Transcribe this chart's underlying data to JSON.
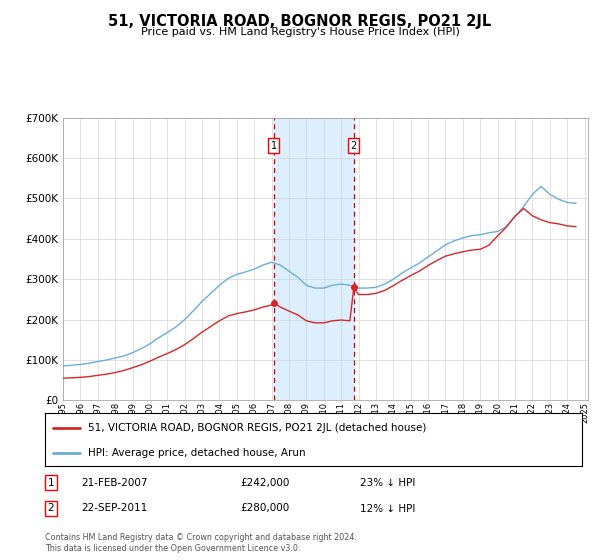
{
  "title": "51, VICTORIA ROAD, BOGNOR REGIS, PO21 2JL",
  "subtitle": "Price paid vs. HM Land Registry's House Price Index (HPI)",
  "hpi_color": "#6baed6",
  "price_color": "#d62728",
  "shading_color": "#ddeeff",
  "ylim": [
    0,
    700000
  ],
  "yticks": [
    0,
    100000,
    200000,
    300000,
    400000,
    500000,
    600000,
    700000
  ],
  "ytick_labels": [
    "£0",
    "£100K",
    "£200K",
    "£300K",
    "£400K",
    "£500K",
    "£600K",
    "£700K"
  ],
  "sale1_year": 2007.13,
  "sale2_year": 2011.73,
  "sale1_price": 242000,
  "sale2_price": 280000,
  "legend_entry1": "51, VICTORIA ROAD, BOGNOR REGIS, PO21 2JL (detached house)",
  "legend_entry2": "HPI: Average price, detached house, Arun",
  "table_row1_label": "1",
  "table_row1_date": "21-FEB-2007",
  "table_row1_price": "£242,000",
  "table_row1_hpi": "23% ↓ HPI",
  "table_row2_label": "2",
  "table_row2_date": "22-SEP-2011",
  "table_row2_price": "£280,000",
  "table_row2_hpi": "12% ↓ HPI",
  "footnote": "Contains HM Land Registry data © Crown copyright and database right 2024.\nThis data is licensed under the Open Government Licence v3.0.",
  "hpi_x": [
    1995,
    1995.5,
    1996,
    1996.5,
    1997,
    1997.5,
    1998,
    1998.5,
    1999,
    1999.5,
    2000,
    2000.5,
    2001,
    2001.5,
    2002,
    2002.5,
    2003,
    2003.5,
    2004,
    2004.5,
    2005,
    2005.5,
    2006,
    2006.5,
    2007,
    2007.5,
    2008,
    2008.5,
    2009,
    2009.5,
    2010,
    2010.5,
    2011,
    2011.5,
    2012,
    2012.5,
    2013,
    2013.5,
    2014,
    2014.5,
    2015,
    2015.5,
    2016,
    2016.5,
    2017,
    2017.5,
    2018,
    2018.5,
    2019,
    2019.5,
    2020,
    2020.5,
    2021,
    2021.5,
    2022,
    2022.5,
    2023,
    2023.5,
    2024,
    2024.5
  ],
  "hpi_y": [
    85000,
    87000,
    89000,
    92000,
    96000,
    100000,
    105000,
    110000,
    118000,
    128000,
    140000,
    155000,
    168000,
    182000,
    200000,
    222000,
    245000,
    265000,
    285000,
    302000,
    312000,
    318000,
    325000,
    335000,
    342000,
    335000,
    320000,
    305000,
    285000,
    278000,
    278000,
    285000,
    288000,
    285000,
    278000,
    278000,
    280000,
    288000,
    300000,
    315000,
    328000,
    340000,
    355000,
    370000,
    385000,
    395000,
    402000,
    408000,
    410000,
    415000,
    418000,
    430000,
    455000,
    480000,
    510000,
    530000,
    510000,
    498000,
    490000,
    488000
  ],
  "price_x": [
    1995,
    1995.5,
    1996,
    1996.5,
    1997,
    1997.5,
    1998,
    1998.5,
    1999,
    1999.5,
    2000,
    2000.5,
    2001,
    2001.5,
    2002,
    2002.5,
    2003,
    2003.5,
    2004,
    2004.5,
    2005,
    2005.5,
    2006,
    2006.5,
    2007,
    2007.13,
    2007.5,
    2008,
    2008.5,
    2009,
    2009.5,
    2010,
    2010.5,
    2011,
    2011.5,
    2011.73,
    2012,
    2012.5,
    2013,
    2013.5,
    2014,
    2014.5,
    2015,
    2015.5,
    2016,
    2016.5,
    2017,
    2017.5,
    2018,
    2018.5,
    2019,
    2019.5,
    2020,
    2020.5,
    2021,
    2021.5,
    2022,
    2022.5,
    2023,
    2023.5,
    2024,
    2024.5
  ],
  "price_y": [
    55000,
    56000,
    57000,
    59000,
    62000,
    65000,
    69000,
    74000,
    81000,
    88000,
    97000,
    107000,
    116000,
    126000,
    138000,
    153000,
    169000,
    183000,
    197000,
    209000,
    215000,
    219000,
    224000,
    231000,
    236000,
    242000,
    231000,
    221000,
    212000,
    197000,
    192000,
    192000,
    197000,
    199000,
    197000,
    280000,
    262000,
    262000,
    265000,
    272000,
    284000,
    297000,
    309000,
    320000,
    334000,
    346000,
    357000,
    363000,
    368000,
    372000,
    374000,
    384000,
    407000,
    429000,
    456000,
    475000,
    457000,
    447000,
    440000,
    437000,
    432000,
    430000
  ],
  "xstart": 1995,
  "xend": 2025
}
